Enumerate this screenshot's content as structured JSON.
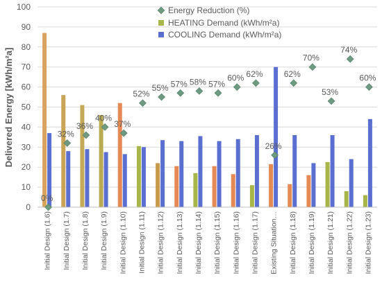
{
  "chart_data": {
    "type": "bar",
    "title": "",
    "xlabel": "",
    "ylabel": "Delivered Energy [kWh/m²a]",
    "ylim": [
      0,
      100
    ],
    "yticks": [
      0,
      10,
      20,
      30,
      40,
      50,
      60,
      70,
      80,
      90,
      100
    ],
    "grid": "horizontal",
    "legend_position": "top-center",
    "categories": [
      "Initial Design (1.6)",
      "Initial Design (1.7)",
      "Initial Design (1.8)",
      "Initial Design (1.9)",
      "Initial Design (1.10)",
      "Initial Design (1.11)",
      "Initial Design (1.12)",
      "Initial Design (1.13)",
      "Initial Design (1.14)",
      "Initial Design (1.15)",
      "Initial Design (1.16)",
      "Initial Design (1.17)",
      "Existing Situation…",
      "Initial Design (1.18)",
      "Initial Design (1.19)",
      "Initial Design (1.21)",
      "Initial Design (1.22)",
      "Initial Design (1.23)"
    ],
    "series": [
      {
        "name": "HEATING Demand (kWh/m²a)",
        "kind": "bar",
        "color": "#a8b548",
        "colors": [
          "#d9a35c",
          "#c9a356",
          "#c4a957",
          "#b8ab52",
          "#e58a55",
          "#a8b548",
          "#c79a4e",
          "#e58a55",
          "#a8b548",
          "#e58a55",
          "#e58a55",
          "#a8b548",
          "#e58a55",
          "#e58a55",
          "#e58a55",
          "#a8b548",
          "#a8b548",
          "#a8b548"
        ],
        "values": [
          87,
          56,
          51,
          46,
          52,
          30.5,
          22,
          20.5,
          17,
          20.5,
          16.5,
          11,
          21.5,
          11.5,
          16,
          22.5,
          8,
          6
        ]
      },
      {
        "name": "COOLING Demand (kWh/m²a)",
        "kind": "bar",
        "color": "#5b6fd0",
        "values": [
          37,
          28,
          29,
          27.5,
          26.5,
          30,
          33.5,
          33,
          35.5,
          33,
          34,
          36,
          70,
          36,
          22,
          36,
          24,
          44
        ]
      },
      {
        "name": "Energy Reduction (%)",
        "kind": "marker",
        "color": "#6e9a82",
        "values": [
          0,
          32,
          36,
          40,
          37,
          52,
          55,
          57,
          58,
          57,
          60,
          62,
          26,
          62,
          70,
          53,
          74,
          60
        ],
        "labels": [
          "0%",
          "32%",
          "36%",
          "40%",
          "37%",
          "52%",
          "55%",
          "57%",
          "58%",
          "57%",
          "60%",
          "62%",
          "26%",
          "62%",
          "70%",
          "53%",
          "74%",
          "60%"
        ]
      }
    ]
  }
}
